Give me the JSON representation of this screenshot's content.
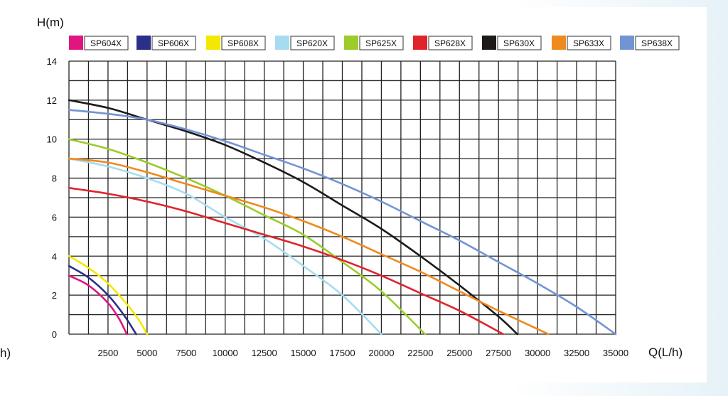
{
  "chart_data": {
    "type": "line",
    "title": "",
    "ylabel": "H(m)",
    "xlabel": "Q(L/h)",
    "edge_label_left": "h)",
    "xlim": [
      0,
      35000
    ],
    "ylim": [
      0,
      14
    ],
    "grid": true,
    "legend_position": "top",
    "x_ticks": [
      "2500",
      "5000",
      "7500",
      "10000",
      "12500",
      "15000",
      "17500",
      "20000",
      "22500",
      "25000",
      "27500",
      "30000",
      "32500",
      "35000"
    ],
    "y_ticks": [
      "0",
      "2",
      "4",
      "6",
      "8",
      "10",
      "12",
      "14"
    ],
    "series": [
      {
        "name": "SP604X",
        "color": "#e0157e",
        "points": [
          [
            0,
            3.0
          ],
          [
            1250,
            2.5
          ],
          [
            2500,
            1.6
          ],
          [
            3200,
            0.8
          ],
          [
            3700,
            0
          ]
        ]
      },
      {
        "name": "SP606X",
        "color": "#2a2f8a",
        "points": [
          [
            0,
            3.5
          ],
          [
            1250,
            2.9
          ],
          [
            2500,
            2.0
          ],
          [
            3500,
            1.0
          ],
          [
            4300,
            0
          ]
        ]
      },
      {
        "name": "SP608X",
        "color": "#f4e800",
        "points": [
          [
            0,
            4.0
          ],
          [
            1250,
            3.4
          ],
          [
            2500,
            2.6
          ],
          [
            3750,
            1.5
          ],
          [
            4500,
            0.7
          ],
          [
            5000,
            0
          ]
        ]
      },
      {
        "name": "SP620X",
        "color": "#a6dcf0",
        "points": [
          [
            0,
            9.0
          ],
          [
            2500,
            8.6
          ],
          [
            5000,
            8.0
          ],
          [
            7500,
            7.2
          ],
          [
            10000,
            6.0
          ],
          [
            12500,
            4.9
          ],
          [
            15000,
            3.5
          ],
          [
            17500,
            2.0
          ],
          [
            20000,
            0
          ]
        ]
      },
      {
        "name": "SP625X",
        "color": "#9ccb2a",
        "points": [
          [
            0,
            10.0
          ],
          [
            2500,
            9.5
          ],
          [
            5000,
            8.8
          ],
          [
            7500,
            8.0
          ],
          [
            10000,
            7.1
          ],
          [
            12500,
            6.1
          ],
          [
            15000,
            5.1
          ],
          [
            17500,
            3.7
          ],
          [
            20000,
            2.2
          ],
          [
            22800,
            0
          ]
        ]
      },
      {
        "name": "SP628X",
        "color": "#e0242b",
        "points": [
          [
            0,
            7.5
          ],
          [
            2500,
            7.2
          ],
          [
            5000,
            6.8
          ],
          [
            7500,
            6.3
          ],
          [
            10000,
            5.7
          ],
          [
            12500,
            5.1
          ],
          [
            15000,
            4.5
          ],
          [
            17500,
            3.8
          ],
          [
            20000,
            3.0
          ],
          [
            22500,
            2.1
          ],
          [
            25000,
            1.2
          ],
          [
            27800,
            0
          ]
        ]
      },
      {
        "name": "SP630X",
        "color": "#1e1a1a",
        "points": [
          [
            0,
            12.0
          ],
          [
            2500,
            11.6
          ],
          [
            5000,
            11.0
          ],
          [
            7500,
            10.4
          ],
          [
            10000,
            9.7
          ],
          [
            12500,
            8.8
          ],
          [
            15000,
            7.8
          ],
          [
            17500,
            6.6
          ],
          [
            20000,
            5.4
          ],
          [
            22500,
            4.0
          ],
          [
            25000,
            2.5
          ],
          [
            27500,
            0.9
          ],
          [
            28700,
            0
          ]
        ]
      },
      {
        "name": "SP633X",
        "color": "#ef8a1e",
        "points": [
          [
            0,
            9.0
          ],
          [
            2500,
            8.8
          ],
          [
            5000,
            8.3
          ],
          [
            7500,
            7.7
          ],
          [
            10000,
            7.1
          ],
          [
            12500,
            6.5
          ],
          [
            15000,
            5.8
          ],
          [
            17500,
            5.0
          ],
          [
            20000,
            4.1
          ],
          [
            22500,
            3.2
          ],
          [
            25000,
            2.2
          ],
          [
            27500,
            1.2
          ],
          [
            30700,
            0
          ]
        ]
      },
      {
        "name": "SP638X",
        "color": "#7394d4",
        "points": [
          [
            0,
            11.5
          ],
          [
            2500,
            11.3
          ],
          [
            5000,
            11.0
          ],
          [
            7500,
            10.5
          ],
          [
            10000,
            9.9
          ],
          [
            12500,
            9.2
          ],
          [
            15000,
            8.5
          ],
          [
            17500,
            7.7
          ],
          [
            20000,
            6.8
          ],
          [
            22500,
            5.8
          ],
          [
            25000,
            4.8
          ],
          [
            27500,
            3.7
          ],
          [
            30000,
            2.6
          ],
          [
            32500,
            1.4
          ],
          [
            35000,
            0
          ]
        ]
      }
    ]
  }
}
